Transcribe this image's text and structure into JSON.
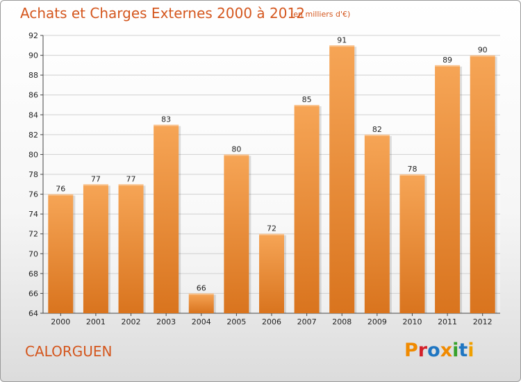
{
  "header": {
    "title": "Achats et Charges Externes 2000 à 2012",
    "subtitle": "(en milliers d'€)"
  },
  "footer": {
    "commune": "CALORGUEN",
    "logo_text": "Proxiti"
  },
  "colors": {
    "accent": "#d4561d",
    "bar_top": "#f6a556",
    "bar_bottom": "#d9741e",
    "grid": "#d0d0d0",
    "logo": [
      "#f08a00",
      "#d4212a",
      "#1f76c2",
      "#f08a00",
      "#36a12c",
      "#1f76c2",
      "#f0a000"
    ]
  },
  "chart_data": {
    "type": "bar",
    "categories": [
      "2000",
      "2001",
      "2002",
      "2003",
      "2004",
      "2005",
      "2006",
      "2007",
      "2008",
      "2009",
      "2010",
      "2011",
      "2012"
    ],
    "values": [
      76,
      77,
      77,
      83,
      66,
      80,
      72,
      85,
      91,
      82,
      78,
      89,
      90
    ],
    "ylim": [
      64,
      92
    ],
    "yticks": [
      64,
      66,
      68,
      70,
      72,
      74,
      76,
      78,
      80,
      82,
      84,
      86,
      88,
      90,
      92
    ],
    "grid": true,
    "xlabel": "",
    "ylabel": ""
  }
}
